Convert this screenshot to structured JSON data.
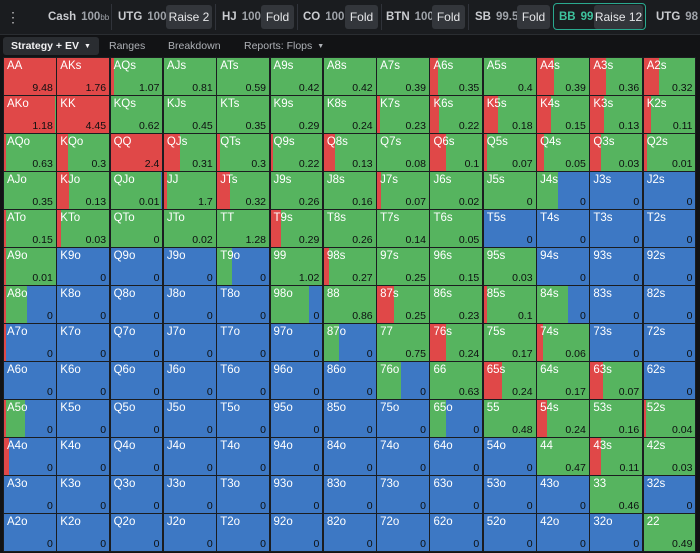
{
  "toolbar": {
    "menu_icon": "kebab-menu-icon",
    "positions": [
      {
        "name": "Cash",
        "stack": "100",
        "unit": "bb"
      },
      {
        "name": "UTG",
        "stack": "100",
        "action": "Raise 2"
      },
      {
        "name": "HJ",
        "stack": "100",
        "action": "Fold"
      },
      {
        "name": "CO",
        "stack": "100",
        "action": "Fold"
      },
      {
        "name": "BTN",
        "stack": "100",
        "action": "Fold"
      },
      {
        "name": "SB",
        "stack": "99.5",
        "action": "Fold"
      },
      {
        "name": "BB",
        "stack": "99",
        "action": "Raise 12"
      },
      {
        "name": "UTG",
        "stack": "98"
      }
    ],
    "active_position_color": "#3ec39e"
  },
  "tabs": [
    {
      "label": "Strategy + EV",
      "active": true
    },
    {
      "label": "Ranges",
      "active": false
    },
    {
      "label": "Breakdown",
      "active": false
    },
    {
      "label": "Reports: Flops",
      "active": false
    }
  ],
  "tool_icons": [
    "card-display-icon",
    "expand-icon",
    "text-size-icon"
  ],
  "colors": {
    "raise": "#e04848",
    "call": "#56b45f",
    "fold": "#3d78c4"
  },
  "matrix": {
    "rows": [
      [
        [
          "AA",
          "9.48",
          1,
          0
        ],
        [
          "AKs",
          "1.76",
          1,
          0
        ],
        [
          "AQs",
          "1.07",
          0.06,
          0.94
        ],
        [
          "AJs",
          "0.81",
          0,
          1
        ],
        [
          "ATs",
          "0.59",
          0,
          1
        ],
        [
          "A9s",
          "0.42",
          0,
          1
        ],
        [
          "A8s",
          "0.42",
          0,
          1
        ],
        [
          "A7s",
          "0.39",
          0,
          1
        ],
        [
          "A6s",
          "0.35",
          0.15,
          0.85
        ],
        [
          "A5s",
          "0.4",
          0,
          1
        ],
        [
          "A4s",
          "0.39",
          0.33,
          0.67
        ],
        [
          "A3s",
          "0.36",
          0.3,
          0.7
        ],
        [
          "A2s",
          "0.32",
          0.3,
          0.7
        ]
      ],
      [
        [
          "AKo",
          "1.18",
          0.98,
          0.02
        ],
        [
          "KK",
          "4.45",
          1,
          0
        ],
        [
          "KQs",
          "0.62",
          0,
          1
        ],
        [
          "KJs",
          "0.45",
          0,
          1
        ],
        [
          "KTs",
          "0.35",
          0,
          1
        ],
        [
          "K9s",
          "0.29",
          0,
          1
        ],
        [
          "K8s",
          "0.24",
          0,
          1
        ],
        [
          "K7s",
          "0.23",
          0.05,
          0.95
        ],
        [
          "K6s",
          "0.22",
          0.17,
          0.83
        ],
        [
          "K5s",
          "0.18",
          0.27,
          0.73
        ],
        [
          "K4s",
          "0.15",
          0.27,
          0.73
        ],
        [
          "K3s",
          "0.13",
          0.27,
          0.73
        ],
        [
          "K2s",
          "0.11",
          0.15,
          0.85
        ]
      ],
      [
        [
          "AQo",
          "0.63",
          0.04,
          0.96
        ],
        [
          "KQo",
          "0.3",
          0.2,
          0.8
        ],
        [
          "QQ",
          "2.4",
          1,
          0
        ],
        [
          "QJs",
          "0.31",
          0.32,
          0.68
        ],
        [
          "QTs",
          "0.3",
          0.05,
          0.95
        ],
        [
          "Q9s",
          "0.22",
          0.04,
          0.96
        ],
        [
          "Q8s",
          "0.13",
          0.22,
          0.78
        ],
        [
          "Q7s",
          "0.08",
          0,
          1
        ],
        [
          "Q6s",
          "0.1",
          0.3,
          0.7
        ],
        [
          "Q5s",
          "0.07",
          0.06,
          0.94
        ],
        [
          "Q4s",
          "0.05",
          0.14,
          0.86
        ],
        [
          "Q3s",
          "0.03",
          0.2,
          0.8
        ],
        [
          "Q2s",
          "0.01",
          0.07,
          0.93
        ]
      ],
      [
        [
          "AJo",
          "0.35",
          0,
          1
        ],
        [
          "KJo",
          "0.13",
          0.22,
          0.78
        ],
        [
          "QJo",
          "0.01",
          0,
          0.98
        ],
        [
          "JJ",
          "1.7",
          0.05,
          0.95
        ],
        [
          "JTs",
          "0.32",
          0.25,
          0.75
        ],
        [
          "J9s",
          "0.26",
          0,
          1
        ],
        [
          "J8s",
          "0.16",
          0,
          1
        ],
        [
          "J7s",
          "0.07",
          0.07,
          0.93
        ],
        [
          "J6s",
          "0.02",
          0,
          1
        ],
        [
          "J5s",
          "0",
          0,
          1
        ],
        [
          "J4s",
          "0",
          0,
          0.4
        ],
        [
          "J3s",
          "0",
          0,
          0
        ],
        [
          "J2s",
          "0",
          0,
          0
        ]
      ],
      [
        [
          "ATo",
          "0.15",
          0.04,
          0.96
        ],
        [
          "KTo",
          "0.03",
          0.08,
          0.92
        ],
        [
          "QTo",
          "0",
          0,
          1
        ],
        [
          "JTo",
          "0.02",
          0,
          1
        ],
        [
          "TT",
          "1.28",
          0,
          1
        ],
        [
          "T9s",
          "0.29",
          0.2,
          0.8
        ],
        [
          "T8s",
          "0.26",
          0,
          1
        ],
        [
          "T7s",
          "0.14",
          0,
          1
        ],
        [
          "T6s",
          "0.05",
          0,
          1
        ],
        [
          "T5s",
          "0",
          0,
          0
        ],
        [
          "T4s",
          "0",
          0,
          0
        ],
        [
          "T3s",
          "0",
          0,
          0
        ],
        [
          "T2s",
          "0",
          0,
          0
        ]
      ],
      [
        [
          "A9o",
          "0.01",
          0.04,
          0.96
        ],
        [
          "K9o",
          "0",
          0,
          0
        ],
        [
          "Q9o",
          "0",
          0,
          0
        ],
        [
          "J9o",
          "0",
          0,
          0
        ],
        [
          "T9o",
          "0",
          0,
          0.28
        ],
        [
          "99",
          "1.02",
          0,
          1
        ],
        [
          "98s",
          "0.27",
          0.1,
          0.9
        ],
        [
          "97s",
          "0.25",
          0,
          1
        ],
        [
          "96s",
          "0.15",
          0,
          1
        ],
        [
          "95s",
          "0.03",
          0,
          1
        ],
        [
          "94s",
          "0",
          0,
          0
        ],
        [
          "93s",
          "0",
          0,
          0
        ],
        [
          "92s",
          "0",
          0,
          0
        ]
      ],
      [
        [
          "A8o",
          "0",
          0.04,
          0.4
        ],
        [
          "K8o",
          "0",
          0,
          0
        ],
        [
          "Q8o",
          "0",
          0,
          0
        ],
        [
          "J8o",
          "0",
          0,
          0
        ],
        [
          "T8o",
          "0",
          0,
          0
        ],
        [
          "98o",
          "0",
          0,
          0.75
        ],
        [
          "88",
          "0.86",
          0,
          1
        ],
        [
          "87s",
          "0.25",
          0.32,
          0.68
        ],
        [
          "86s",
          "0.23",
          0,
          1
        ],
        [
          "85s",
          "0.1",
          0.07,
          0.93
        ],
        [
          "84s",
          "0",
          0,
          0.6
        ],
        [
          "83s",
          "0",
          0,
          0
        ],
        [
          "82s",
          "0",
          0,
          0
        ]
      ],
      [
        [
          "A7o",
          "0",
          0.04,
          0
        ],
        [
          "K7o",
          "0",
          0,
          0
        ],
        [
          "Q7o",
          "0",
          0,
          0
        ],
        [
          "J7o",
          "0",
          0,
          0
        ],
        [
          "T7o",
          "0",
          0,
          0
        ],
        [
          "97o",
          "0",
          0,
          0
        ],
        [
          "87o",
          "0",
          0,
          0.3
        ],
        [
          "77",
          "0.75",
          0,
          1
        ],
        [
          "76s",
          "0.24",
          0.3,
          0.7
        ],
        [
          "75s",
          "0.17",
          0,
          1
        ],
        [
          "74s",
          "0.06",
          0.12,
          0.88
        ],
        [
          "73s",
          "0",
          0,
          0
        ],
        [
          "72s",
          "0",
          0,
          0
        ]
      ],
      [
        [
          "A6o",
          "0",
          0,
          0
        ],
        [
          "K6o",
          "0",
          0,
          0
        ],
        [
          "Q6o",
          "0",
          0,
          0
        ],
        [
          "J6o",
          "0",
          0,
          0
        ],
        [
          "T6o",
          "0",
          0,
          0
        ],
        [
          "96o",
          "0",
          0,
          0
        ],
        [
          "86o",
          "0",
          0,
          0
        ],
        [
          "76o",
          "0",
          0,
          0.46
        ],
        [
          "66",
          "0.63",
          0,
          1
        ],
        [
          "65s",
          "0.24",
          0.35,
          0.65
        ],
        [
          "64s",
          "0.17",
          0,
          1
        ],
        [
          "63s",
          "0.07",
          0.25,
          0.75
        ],
        [
          "62s",
          "0",
          0,
          0
        ]
      ],
      [
        [
          "A5o",
          "0",
          0.04,
          0.36
        ],
        [
          "K5o",
          "0",
          0,
          0
        ],
        [
          "Q5o",
          "0",
          0,
          0
        ],
        [
          "J5o",
          "0",
          0,
          0
        ],
        [
          "T5o",
          "0",
          0,
          0
        ],
        [
          "95o",
          "0",
          0,
          0
        ],
        [
          "85o",
          "0",
          0,
          0
        ],
        [
          "75o",
          "0",
          0,
          0
        ],
        [
          "65o",
          "0",
          0,
          0.3
        ],
        [
          "55",
          "0.48",
          0,
          1
        ],
        [
          "54s",
          "0.24",
          0.2,
          0.8
        ],
        [
          "53s",
          "0.16",
          0,
          1
        ],
        [
          "52s",
          "0.04",
          0.05,
          0.95
        ]
      ],
      [
        [
          "A4o",
          "0",
          0.1,
          0
        ],
        [
          "K4o",
          "0",
          0,
          0
        ],
        [
          "Q4o",
          "0",
          0,
          0
        ],
        [
          "J4o",
          "0",
          0,
          0
        ],
        [
          "T4o",
          "0",
          0,
          0
        ],
        [
          "94o",
          "0",
          0,
          0
        ],
        [
          "84o",
          "0",
          0,
          0
        ],
        [
          "74o",
          "0",
          0,
          0
        ],
        [
          "64o",
          "0",
          0,
          0
        ],
        [
          "54o",
          "0",
          0,
          0
        ],
        [
          "44",
          "0.47",
          0,
          1
        ],
        [
          "43s",
          "0.11",
          0.2,
          0.8
        ],
        [
          "42s",
          "0.03",
          0,
          1
        ]
      ],
      [
        [
          "A3o",
          "0",
          0,
          0
        ],
        [
          "K3o",
          "0",
          0,
          0
        ],
        [
          "Q3o",
          "0",
          0,
          0
        ],
        [
          "J3o",
          "0",
          0,
          0
        ],
        [
          "T3o",
          "0",
          0,
          0
        ],
        [
          "93o",
          "0",
          0,
          0
        ],
        [
          "83o",
          "0",
          0,
          0
        ],
        [
          "73o",
          "0",
          0,
          0
        ],
        [
          "63o",
          "0",
          0,
          0
        ],
        [
          "53o",
          "0",
          0,
          0
        ],
        [
          "43o",
          "0",
          0,
          0
        ],
        [
          "33",
          "0.46",
          0,
          1
        ],
        [
          "32s",
          "0",
          0,
          0
        ]
      ],
      [
        [
          "A2o",
          "0",
          0,
          0
        ],
        [
          "K2o",
          "0",
          0,
          0
        ],
        [
          "Q2o",
          "0",
          0,
          0
        ],
        [
          "J2o",
          "0",
          0,
          0
        ],
        [
          "T2o",
          "0",
          0,
          0
        ],
        [
          "92o",
          "0",
          0,
          0
        ],
        [
          "82o",
          "0",
          0,
          0
        ],
        [
          "72o",
          "0",
          0,
          0
        ],
        [
          "62o",
          "0",
          0,
          0
        ],
        [
          "52o",
          "0",
          0,
          0
        ],
        [
          "42o",
          "0",
          0,
          0
        ],
        [
          "32o",
          "0",
          0,
          0
        ],
        [
          "22",
          "0.49",
          0,
          1
        ]
      ]
    ]
  }
}
